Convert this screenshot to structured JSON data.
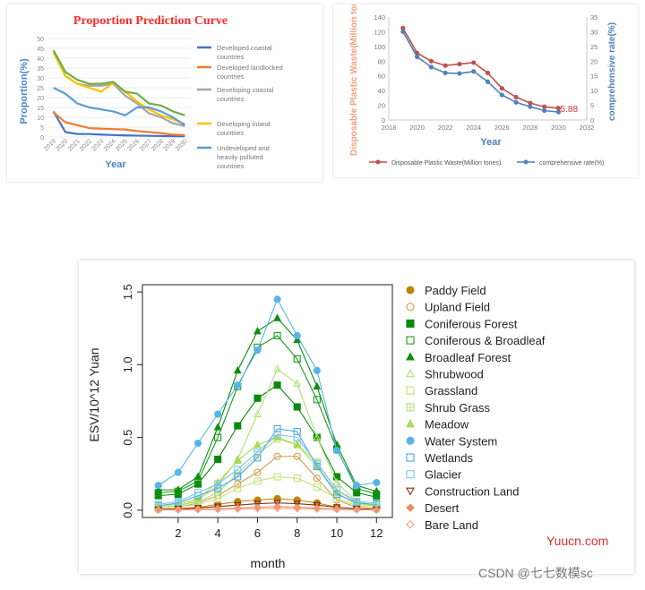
{
  "chart_data": [
    {
      "type": "line",
      "title": "Proportion Prediction Curve",
      "xlabel": "Year",
      "ylabel": "Proportion(%)",
      "categories": [
        "2019",
        "2020",
        "2021",
        "2022",
        "2023",
        "2024",
        "2025",
        "2026",
        "2027",
        "2028",
        "2029",
        "2030"
      ],
      "yticks": [
        "0",
        "5",
        "10",
        "15",
        "20",
        "25",
        "30",
        "35",
        "40",
        "45",
        "50"
      ],
      "ylim": [
        0,
        50
      ],
      "grid": true,
      "legend": "right",
      "series": [
        {
          "name": "Developed coastal countries",
          "color": "#4472c4",
          "values": [
            13,
            2.5,
            1.5,
            1.5,
            1.2,
            1,
            0.8,
            0.7,
            0.6,
            0.5,
            0.4,
            0.4
          ]
        },
        {
          "name": "Developed landlocked countries",
          "color": "#ed7d31",
          "values": [
            12.5,
            7.5,
            6,
            4.5,
            4.2,
            4,
            3.8,
            3,
            2.5,
            2,
            1.2,
            1
          ]
        },
        {
          "name": "Developing coastal countries",
          "color": "#a5a5a5",
          "values": [
            44,
            31,
            27,
            26,
            26,
            27,
            21,
            17,
            12,
            10,
            7,
            5.5
          ]
        },
        {
          "name": "Developing inland countries",
          "color": "#ffc000",
          "values": [
            43,
            31,
            27,
            25,
            23,
            27.5,
            23,
            18,
            14,
            11,
            9,
            6.5
          ]
        },
        {
          "name": "Undeveloped and heavily polluted countries",
          "color": "#5b9bd5",
          "values": [
            25,
            22,
            17,
            15,
            14,
            13,
            11,
            15,
            15,
            13,
            10,
            6
          ]
        },
        {
          "name": "",
          "color": "#70ad47",
          "values": [
            44,
            33,
            29,
            27,
            27,
            28,
            23,
            22,
            17,
            16,
            13,
            11
          ]
        }
      ]
    },
    {
      "type": "line",
      "xlabel": "Year",
      "ylabel": "Disposable Plastic Waste(Million tones)",
      "ylabel2": "comprehensive rate(%)",
      "xlim": [
        2018,
        2032
      ],
      "xticks": [
        "2018",
        "2020",
        "2022",
        "2024",
        "2026",
        "2028",
        "2030",
        "2032"
      ],
      "ylim": [
        0,
        140
      ],
      "yticks": [
        "0",
        "20",
        "40",
        "60",
        "80",
        "100",
        "120",
        "140"
      ],
      "y2lim": [
        0,
        35
      ],
      "y2ticks": [
        "0",
        "5",
        "10",
        "15",
        "20",
        "25",
        "30",
        "35"
      ],
      "legend": "bottom",
      "annotation": "15.88",
      "series": [
        {
          "name": "Disposable Plastic Waste(Million tones)",
          "color": "#c0504d",
          "axis": "left",
          "x": [
            2019,
            2020,
            2021,
            2022,
            2023,
            2024,
            2025,
            2026,
            2027,
            2028,
            2029,
            2030
          ],
          "values": [
            125,
            91,
            80,
            74,
            76,
            78,
            64,
            43,
            31,
            23,
            18,
            15.88
          ]
        },
        {
          "name": "comprehensive rate(%)",
          "color": "#4f81bd",
          "axis": "right",
          "x": [
            2019,
            2020,
            2021,
            2022,
            2023,
            2024,
            2025,
            2026,
            2027,
            2028,
            2029,
            2030
          ],
          "values": [
            30,
            21.5,
            18,
            16,
            15.8,
            16.5,
            13,
            8.5,
            6,
            4.5,
            3.2,
            2.7
          ]
        }
      ]
    },
    {
      "type": "line",
      "xlabel": "month",
      "ylabel": "ESV/10^12 Yuan",
      "x": [
        1,
        2,
        3,
        4,
        5,
        6,
        7,
        8,
        9,
        10,
        11,
        12
      ],
      "xticks": [
        "2",
        "4",
        "6",
        "8",
        "10",
        "12"
      ],
      "xlim": [
        0.2,
        12.8
      ],
      "ylim": [
        -0.05,
        1.55
      ],
      "yticks": [
        "0.0",
        "0.5",
        "1.0",
        "1.5"
      ],
      "legend": "right",
      "series": [
        {
          "name": "Paddy Field",
          "color": "#b8860b",
          "marker": "circle-filled",
          "values": [
            0.005,
            0.01,
            0.02,
            0.04,
            0.06,
            0.07,
            0.08,
            0.07,
            0.05,
            0.02,
            0.01,
            0.005
          ]
        },
        {
          "name": "Upland Field",
          "color": "#d49a48",
          "marker": "circle-open",
          "values": [
            0.01,
            0.02,
            0.05,
            0.1,
            0.18,
            0.26,
            0.37,
            0.37,
            0.22,
            0.07,
            0.02,
            0.01
          ]
        },
        {
          "name": "Coniferous Forest",
          "color": "#0a8a0a",
          "marker": "square-filled",
          "values": [
            0.1,
            0.11,
            0.18,
            0.35,
            0.58,
            0.77,
            0.86,
            0.71,
            0.5,
            0.23,
            0.12,
            0.09
          ]
        },
        {
          "name": "Coniferous & Broadleaf",
          "color": "#1a9a1a",
          "marker": "square-open",
          "values": [
            0.12,
            0.13,
            0.2,
            0.5,
            0.85,
            1.12,
            1.2,
            1.04,
            0.76,
            0.42,
            0.15,
            0.11
          ]
        },
        {
          "name": "Broadleaf Forest",
          "color": "#0d8f0d",
          "marker": "triangle-filled",
          "values": [
            0.14,
            0.14,
            0.23,
            0.57,
            0.96,
            1.23,
            1.32,
            1.17,
            0.85,
            0.45,
            0.17,
            0.13
          ]
        },
        {
          "name": "Shrubwood",
          "color": "#b2e07a",
          "marker": "triangle-open",
          "values": [
            0.02,
            0.03,
            0.07,
            0.17,
            0.35,
            0.66,
            0.97,
            0.87,
            0.5,
            0.19,
            0.06,
            0.03
          ]
        },
        {
          "name": "Grassland",
          "color": "#c2e27a",
          "marker": "square-open",
          "values": [
            0.01,
            0.02,
            0.04,
            0.08,
            0.15,
            0.2,
            0.23,
            0.22,
            0.16,
            0.08,
            0.03,
            0.02
          ]
        },
        {
          "name": "Shrub Grass",
          "color": "#b8de80",
          "marker": "square-plus",
          "values": [
            0.02,
            0.03,
            0.06,
            0.12,
            0.25,
            0.38,
            0.49,
            0.45,
            0.33,
            0.14,
            0.05,
            0.03
          ]
        },
        {
          "name": "Meadow",
          "color": "#a6dc5a",
          "marker": "triangle-filled",
          "values": [
            0.03,
            0.04,
            0.08,
            0.19,
            0.34,
            0.45,
            0.5,
            0.45,
            0.3,
            0.12,
            0.04,
            0.03
          ]
        },
        {
          "name": "Water System",
          "color": "#56b4e9",
          "marker": "circle-filled",
          "values": [
            0.17,
            0.26,
            0.46,
            0.66,
            0.86,
            1.1,
            1.45,
            1.2,
            0.96,
            0.41,
            0.17,
            0.19
          ]
        },
        {
          "name": "Wetlands",
          "color": "#4aa8e6",
          "marker": "square-open",
          "values": [
            0.03,
            0.05,
            0.1,
            0.15,
            0.23,
            0.36,
            0.56,
            0.54,
            0.3,
            0.11,
            0.05,
            0.04
          ]
        },
        {
          "name": "Glacier",
          "color": "#7fc4ea",
          "marker": "square-open",
          "values": [
            0.04,
            0.06,
            0.12,
            0.18,
            0.28,
            0.4,
            0.52,
            0.5,
            0.32,
            0.14,
            0.06,
            0.05
          ]
        },
        {
          "name": "Construction Land",
          "color": "#8b2e16",
          "marker": "triangle-down-open",
          "values": [
            0.005,
            0.01,
            0.015,
            0.025,
            0.035,
            0.045,
            0.05,
            0.045,
            0.035,
            0.02,
            0.01,
            0.005
          ]
        },
        {
          "name": "Desert",
          "color": "#f08a5a",
          "marker": "diamond-filled",
          "values": [
            0.002,
            0.004,
            0.006,
            0.01,
            0.015,
            0.02,
            0.025,
            0.02,
            0.015,
            0.008,
            0.004,
            0.002
          ]
        },
        {
          "name": "Bare Land",
          "color": "#f4a38a",
          "marker": "diamond-open",
          "values": [
            0.001,
            0.002,
            0.003,
            0.005,
            0.008,
            0.01,
            0.012,
            0.01,
            0.008,
            0.004,
            0.002,
            0.001
          ]
        }
      ]
    }
  ],
  "watermarks": {
    "site": "Yuucn.com",
    "author": "CSDN @七七数模sc"
  }
}
